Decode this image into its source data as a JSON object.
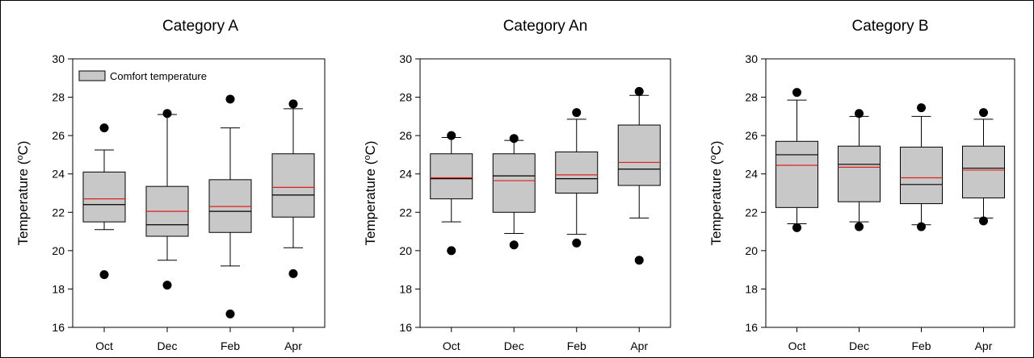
{
  "chart_data": [
    {
      "type": "box",
      "title": "Category A",
      "ylabel_main": "Temperature (",
      "ylabel_sup": "o",
      "ylabel_end": "C)",
      "ylim": [
        16,
        30
      ],
      "yticks": [
        16,
        18,
        20,
        22,
        24,
        26,
        28,
        30
      ],
      "categories": [
        "Oct",
        "Dec",
        "Feb",
        "Apr"
      ],
      "legend": {
        "label": "Comfort temperature",
        "position": "top-left"
      },
      "boxes": [
        {
          "whisker_low": 21.1,
          "q1": 21.5,
          "median": 22.4,
          "mean": 22.7,
          "q3": 24.1,
          "whisker_high": 25.25,
          "outliers": [
            26.4,
            18.75
          ]
        },
        {
          "whisker_low": 19.5,
          "q1": 20.75,
          "median": 21.35,
          "mean": 22.05,
          "q3": 23.35,
          "whisker_high": 27.1,
          "outliers": [
            27.15,
            18.2
          ]
        },
        {
          "whisker_low": 19.2,
          "q1": 20.95,
          "median": 22.05,
          "mean": 22.3,
          "q3": 23.7,
          "whisker_high": 26.4,
          "outliers": [
            27.9,
            16.7
          ]
        },
        {
          "whisker_low": 20.15,
          "q1": 21.75,
          "median": 22.9,
          "mean": 23.3,
          "q3": 25.05,
          "whisker_high": 27.4,
          "outliers": [
            27.65,
            18.8
          ]
        }
      ]
    },
    {
      "type": "box",
      "title": "Category An",
      "ylabel_main": "Temperature (",
      "ylabel_sup": "o",
      "ylabel_end": "C)",
      "ylim": [
        16,
        30
      ],
      "yticks": [
        16,
        18,
        20,
        22,
        24,
        26,
        28,
        30
      ],
      "categories": [
        "Oct",
        "Dec",
        "Feb",
        "Apr"
      ],
      "boxes": [
        {
          "whisker_low": 21.5,
          "q1": 22.7,
          "median": 23.75,
          "mean": 23.8,
          "q3": 25.05,
          "whisker_high": 25.9,
          "outliers": [
            26.0,
            20.0
          ]
        },
        {
          "whisker_low": 20.9,
          "q1": 22.0,
          "median": 23.9,
          "mean": 23.65,
          "q3": 25.05,
          "whisker_high": 25.75,
          "outliers": [
            25.85,
            20.3
          ]
        },
        {
          "whisker_low": 20.85,
          "q1": 23.0,
          "median": 23.75,
          "mean": 23.95,
          "q3": 25.15,
          "whisker_high": 26.85,
          "outliers": [
            27.2,
            20.4
          ]
        },
        {
          "whisker_low": 21.7,
          "q1": 23.4,
          "median": 24.25,
          "mean": 24.6,
          "q3": 26.55,
          "whisker_high": 28.1,
          "outliers": [
            28.3,
            19.5
          ]
        }
      ]
    },
    {
      "type": "box",
      "title": "Category B",
      "ylabel_main": "Temperature (",
      "ylabel_sup": "o",
      "ylabel_end": "C)",
      "ylim": [
        16,
        30
      ],
      "yticks": [
        16,
        18,
        20,
        22,
        24,
        26,
        28,
        30
      ],
      "categories": [
        "Oct",
        "Dec",
        "Feb",
        "Apr"
      ],
      "boxes": [
        {
          "whisker_low": 21.4,
          "q1": 22.25,
          "median": 25.0,
          "mean": 24.45,
          "q3": 25.7,
          "whisker_high": 27.85,
          "outliers": [
            28.25,
            21.2
          ]
        },
        {
          "whisker_low": 21.5,
          "q1": 22.55,
          "median": 24.5,
          "mean": 24.35,
          "q3": 25.45,
          "whisker_high": 27.0,
          "outliers": [
            27.15,
            21.25
          ]
        },
        {
          "whisker_low": 21.35,
          "q1": 22.45,
          "median": 23.45,
          "mean": 23.8,
          "q3": 25.4,
          "whisker_high": 27.0,
          "outliers": [
            27.45,
            21.25
          ]
        },
        {
          "whisker_low": 21.7,
          "q1": 22.75,
          "median": 24.3,
          "mean": 24.2,
          "q3": 25.45,
          "whisker_high": 26.85,
          "outliers": [
            27.2,
            21.55
          ]
        }
      ]
    }
  ],
  "colors": {
    "box_fill": "#c8c8c8",
    "mean_line": "#e0201c",
    "median_line": "#000000",
    "outlier": "#000000"
  }
}
